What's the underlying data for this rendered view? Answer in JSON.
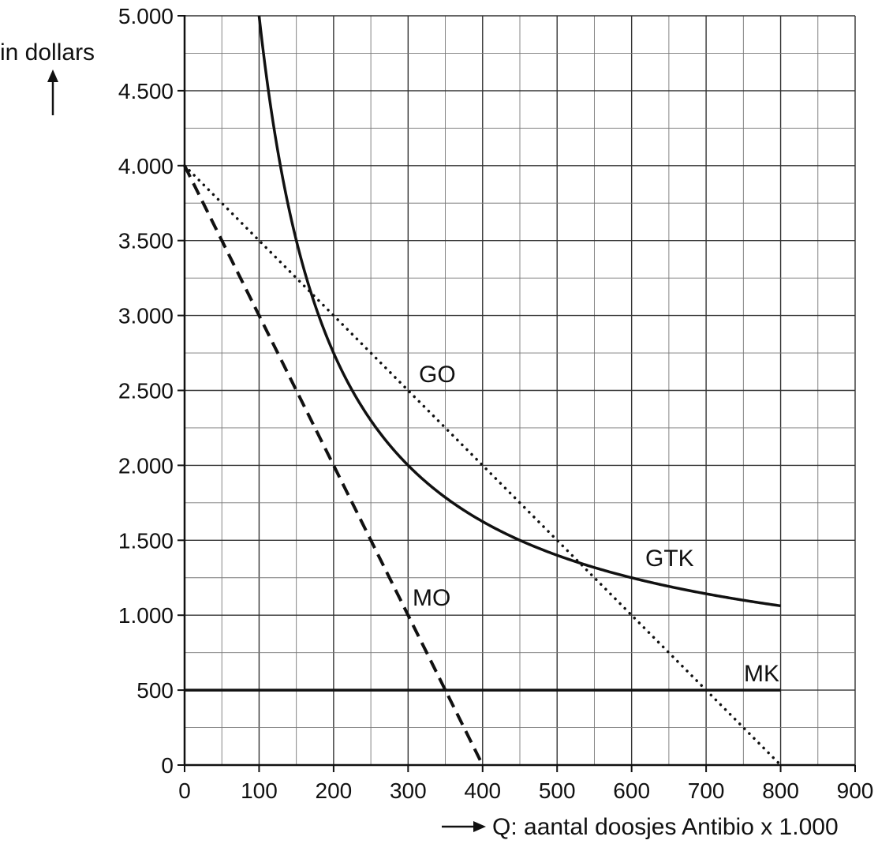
{
  "chart_data": {
    "type": "line",
    "ylabel": "in dollars",
    "xlabel": "Q: aantal doosjes Antibio x 1.000",
    "xlim": [
      0,
      900
    ],
    "ylim": [
      0,
      5000
    ],
    "x_ticks": [
      0,
      100,
      200,
      300,
      400,
      500,
      600,
      700,
      800,
      900
    ],
    "x_tick_labels": [
      "0",
      "100",
      "200",
      "300",
      "400",
      "500",
      "600",
      "700",
      "800",
      "900"
    ],
    "y_ticks": [
      0,
      500,
      1000,
      1500,
      2000,
      2500,
      3000,
      3500,
      4000,
      4500,
      5000
    ],
    "y_tick_labels": [
      "0",
      "500",
      "1.000",
      "1.500",
      "2.000",
      "2.500",
      "3.000",
      "3.500",
      "4.000",
      "4.500",
      "5.000"
    ],
    "grid": true,
    "series": [
      {
        "name": "GO",
        "style": "dotted",
        "x": [
          0,
          800
        ],
        "y": [
          4000,
          0
        ]
      },
      {
        "name": "MO",
        "style": "dashed",
        "x": [
          0,
          400
        ],
        "y": [
          4000,
          0
        ]
      },
      {
        "name": "MK",
        "style": "solid",
        "x": [
          0,
          800
        ],
        "y": [
          500,
          500
        ]
      },
      {
        "name": "GTK",
        "style": "solid",
        "x": [
          100,
          125,
          150,
          175,
          200,
          250,
          300,
          350,
          400,
          450,
          500,
          550,
          600,
          650,
          700,
          750,
          800
        ],
        "y": [
          5000,
          4100,
          3500,
          3071,
          2750,
          2300,
          2000,
          1786,
          1625,
          1500,
          1400,
          1318,
          1250,
          1192,
          1143,
          1100,
          1062
        ]
      }
    ]
  }
}
